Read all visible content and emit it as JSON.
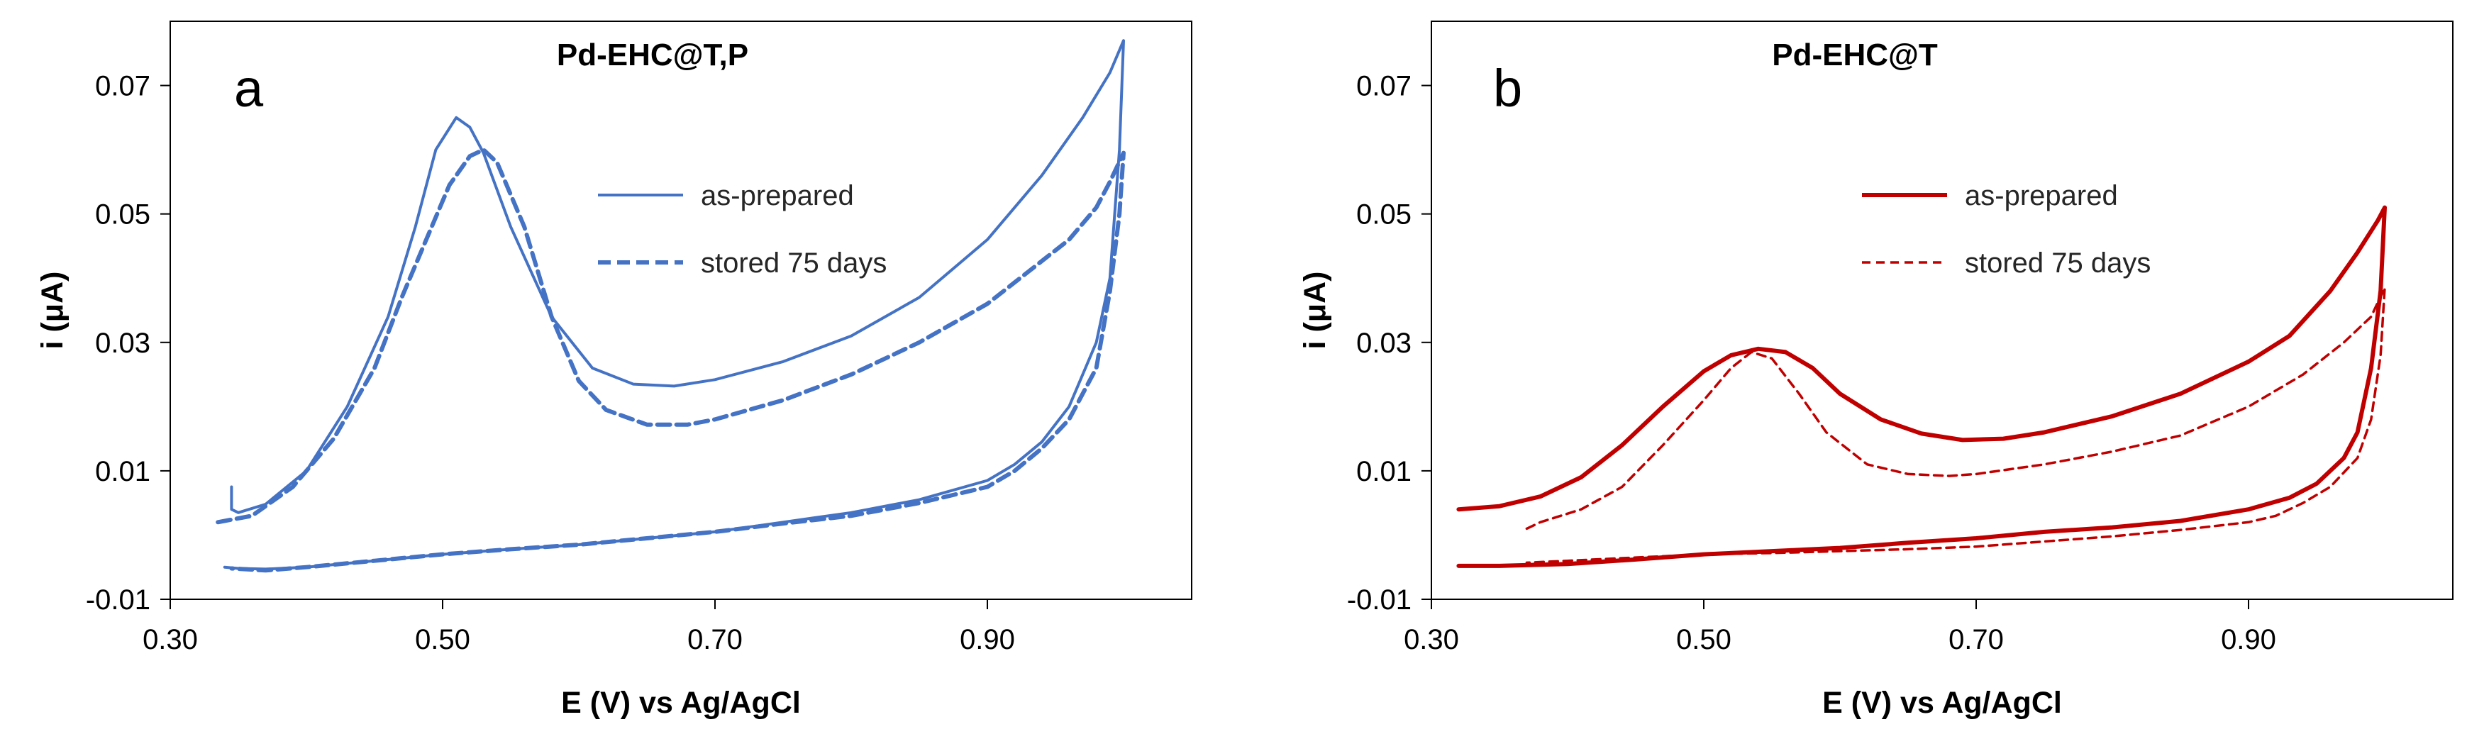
{
  "figure": {
    "description": "Cyclic voltammograms of Pd-EHC electrodes, as-prepared vs stored 75 days"
  },
  "chart_data": [
    {
      "type": "line",
      "panel_label": "a",
      "title": "Pd-EHC@T,P",
      "xlabel": "E (V) vs Ag/AgCl",
      "ylabel": "i (μA)",
      "xlim": [
        0.3,
        1.05
      ],
      "ylim": [
        -0.01,
        0.08
      ],
      "xticks": [
        "0.30",
        "0.50",
        "0.70",
        "0.90"
      ],
      "xtick_values": [
        0.3,
        0.5,
        0.7,
        0.9
      ],
      "yticks": [
        "-0.01",
        "0.01",
        "0.03",
        "0.05",
        "0.07"
      ],
      "ytick_values": [
        -0.01,
        0.01,
        0.03,
        0.05,
        0.07
      ],
      "grid": false,
      "legend_position": "top-right",
      "color": "#4472C4",
      "series": [
        {
          "name": "as-prepared",
          "style": "solid",
          "x": [
            0.345,
            0.345,
            0.35,
            0.37,
            0.4,
            0.43,
            0.46,
            0.48,
            0.495,
            0.51,
            0.52,
            0.53,
            0.55,
            0.58,
            0.61,
            0.64,
            0.67,
            0.7,
            0.75,
            0.8,
            0.85,
            0.9,
            0.94,
            0.97,
            0.99,
            1.0,
            0.997,
            0.99,
            0.98,
            0.96,
            0.94,
            0.92,
            0.9,
            0.85,
            0.8,
            0.75,
            0.7,
            0.65,
            0.6,
            0.55,
            0.5,
            0.45,
            0.4,
            0.37,
            0.35,
            0.34
          ],
          "y": [
            0.0075,
            0.004,
            0.0035,
            0.0048,
            0.01,
            0.02,
            0.034,
            0.048,
            0.06,
            0.065,
            0.0635,
            0.0595,
            0.048,
            0.034,
            0.026,
            0.0235,
            0.0232,
            0.0242,
            0.027,
            0.031,
            0.037,
            0.046,
            0.056,
            0.065,
            0.072,
            0.077,
            0.06,
            0.04,
            0.03,
            0.02,
            0.0145,
            0.011,
            0.0085,
            0.0055,
            0.0035,
            0.002,
            0.0005,
            -0.0005,
            -0.0015,
            -0.0022,
            -0.003,
            -0.004,
            -0.005,
            -0.0053,
            -0.0052,
            -0.005
          ]
        },
        {
          "name": "stored 75 days",
          "style": "dashed",
          "x": [
            0.335,
            0.36,
            0.39,
            0.42,
            0.45,
            0.47,
            0.49,
            0.505,
            0.52,
            0.53,
            0.54,
            0.56,
            0.58,
            0.6,
            0.62,
            0.65,
            0.68,
            0.7,
            0.75,
            0.8,
            0.85,
            0.9,
            0.93,
            0.96,
            0.98,
            0.99,
            1.0,
            0.997,
            0.99,
            0.98,
            0.96,
            0.94,
            0.92,
            0.9,
            0.85,
            0.8,
            0.75,
            0.7,
            0.65,
            0.6,
            0.55,
            0.5,
            0.45,
            0.4,
            0.37,
            0.345
          ],
          "y": [
            0.002,
            0.003,
            0.0075,
            0.015,
            0.026,
            0.037,
            0.047,
            0.0545,
            0.059,
            0.06,
            0.058,
            0.048,
            0.034,
            0.024,
            0.0195,
            0.0172,
            0.0172,
            0.018,
            0.021,
            0.025,
            0.03,
            0.036,
            0.041,
            0.046,
            0.051,
            0.055,
            0.0595,
            0.05,
            0.038,
            0.026,
            0.018,
            0.0135,
            0.01,
            0.0075,
            0.005,
            0.003,
            0.0018,
            0.0005,
            -0.0005,
            -0.0015,
            -0.0022,
            -0.003,
            -0.004,
            -0.005,
            -0.0055,
            -0.0052
          ]
        }
      ]
    },
    {
      "type": "line",
      "panel_label": "b",
      "title": "Pd-EHC@T",
      "xlabel": "E (V) vs Ag/AgCl",
      "ylabel": "i (μA)",
      "xlim": [
        0.3,
        1.05
      ],
      "ylim": [
        -0.01,
        0.08
      ],
      "xticks": [
        "0.30",
        "0.50",
        "0.70",
        "0.90"
      ],
      "xtick_values": [
        0.3,
        0.5,
        0.7,
        0.9
      ],
      "yticks": [
        "-0.01",
        "0.01",
        "0.03",
        "0.05",
        "0.07"
      ],
      "ytick_values": [
        -0.01,
        0.01,
        0.03,
        0.05,
        0.07
      ],
      "grid": false,
      "legend_position": "top-right",
      "color": "#C00000",
      "series": [
        {
          "name": "as-prepared",
          "style": "solid",
          "x": [
            0.32,
            0.35,
            0.38,
            0.41,
            0.44,
            0.47,
            0.5,
            0.52,
            0.54,
            0.56,
            0.58,
            0.6,
            0.63,
            0.66,
            0.69,
            0.72,
            0.75,
            0.8,
            0.85,
            0.9,
            0.93,
            0.96,
            0.98,
            0.995,
            1.0,
            0.997,
            0.99,
            0.98,
            0.97,
            0.95,
            0.93,
            0.9,
            0.85,
            0.8,
            0.75,
            0.7,
            0.65,
            0.6,
            0.55,
            0.5,
            0.45,
            0.4,
            0.35,
            0.32
          ],
          "y": [
            0.004,
            0.0045,
            0.006,
            0.009,
            0.014,
            0.02,
            0.0255,
            0.028,
            0.029,
            0.0285,
            0.026,
            0.022,
            0.018,
            0.0158,
            0.0148,
            0.015,
            0.016,
            0.0185,
            0.022,
            0.027,
            0.031,
            0.038,
            0.044,
            0.049,
            0.051,
            0.038,
            0.026,
            0.016,
            0.012,
            0.008,
            0.0058,
            0.004,
            0.0022,
            0.0012,
            0.0005,
            -0.0005,
            -0.0012,
            -0.002,
            -0.0025,
            -0.003,
            -0.0038,
            -0.0045,
            -0.0048,
            -0.0048
          ]
        },
        {
          "name": "stored 75 days",
          "style": "dashed",
          "x": [
            0.37,
            0.38,
            0.41,
            0.44,
            0.47,
            0.5,
            0.52,
            0.535,
            0.55,
            0.57,
            0.59,
            0.62,
            0.65,
            0.68,
            0.7,
            0.75,
            0.8,
            0.85,
            0.9,
            0.94,
            0.97,
            0.99,
            1.0,
            0.997,
            0.99,
            0.98,
            0.96,
            0.94,
            0.92,
            0.9,
            0.85,
            0.8,
            0.75,
            0.7,
            0.65,
            0.6,
            0.55,
            0.5,
            0.45,
            0.4,
            0.37
          ],
          "y": [
            0.001,
            0.002,
            0.004,
            0.0075,
            0.014,
            0.021,
            0.026,
            0.0285,
            0.0275,
            0.022,
            0.016,
            0.011,
            0.0095,
            0.0092,
            0.0095,
            0.011,
            0.013,
            0.0155,
            0.02,
            0.025,
            0.03,
            0.034,
            0.0385,
            0.028,
            0.018,
            0.012,
            0.0075,
            0.005,
            0.003,
            0.002,
            0.0008,
            -0.0002,
            -0.001,
            -0.0018,
            -0.0022,
            -0.0025,
            -0.0028,
            -0.003,
            -0.0035,
            -0.004,
            -0.0043
          ]
        }
      ]
    }
  ]
}
